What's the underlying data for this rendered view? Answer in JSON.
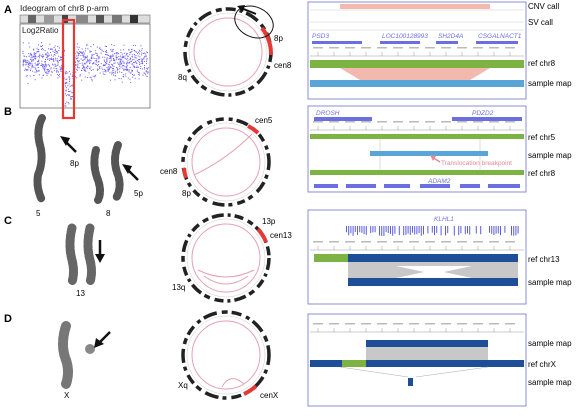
{
  "rows": [
    {
      "letter": "A",
      "left": {
        "title": "Ideogram of chr8 p-arm",
        "ylabel": "Log2Ratio"
      },
      "circos": {
        "labels": [
          "8p",
          "cen8",
          "8q"
        ]
      },
      "track": {
        "calls": [
          "CNV call",
          "SV call"
        ],
        "genes": [
          "PSD3",
          "LOC100128993",
          "SH2D4A",
          "CSGALNACT1"
        ],
        "tracks": [
          "ref chr8",
          "sample map"
        ]
      }
    },
    {
      "letter": "B",
      "left": {
        "labels": [
          "8p",
          "5p",
          "5",
          "8"
        ]
      },
      "circos": {
        "labels": [
          "cen5",
          "cen8",
          "8p"
        ]
      },
      "track": {
        "genes_top": [
          "DROSH",
          "PDZD2"
        ],
        "genes_bottom": [
          "ADAM2"
        ],
        "tracks": [
          "ref chr5",
          "sample map",
          "ref chr8"
        ],
        "annotation": "Translocation breakpoint"
      }
    },
    {
      "letter": "C",
      "left": {
        "labels": [
          "13"
        ]
      },
      "circos": {
        "labels": [
          "13p",
          "cen13",
          "13q"
        ]
      },
      "track": {
        "genes": [
          "KLHL1"
        ],
        "tracks": [
          "ref chr13",
          "sample map"
        ]
      }
    },
    {
      "letter": "D",
      "left": {
        "labels": [
          "X"
        ]
      },
      "circos": {
        "labels": [
          "Xq",
          "cenX"
        ]
      },
      "track": {
        "tracks": [
          "sample map",
          "ref chrX",
          "sample map"
        ]
      }
    }
  ],
  "colors": {
    "frame": "#8a8fd6",
    "gene": "#6b6fe0",
    "ref": "#7cb342",
    "sample": "#5aa5d8",
    "pink": "#e2899a",
    "navy": "#1f4e99",
    "red": "#e53935"
  }
}
